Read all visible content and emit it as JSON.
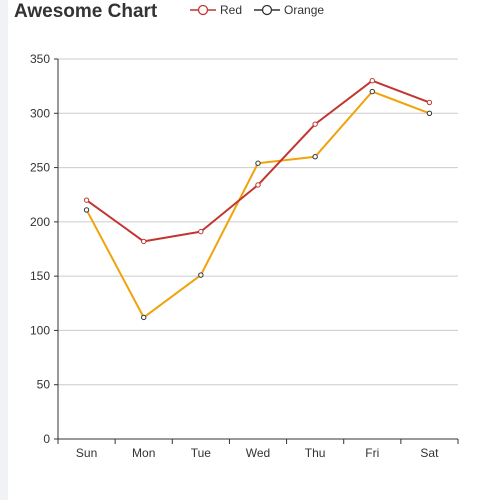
{
  "chart_data": {
    "type": "line",
    "title": "Awesome Chart",
    "categories": [
      "Sun",
      "Mon",
      "Tue",
      "Wed",
      "Thu",
      "Fri",
      "Sat"
    ],
    "ylim": [
      0,
      350
    ],
    "yticks": [
      0,
      50,
      100,
      150,
      200,
      250,
      300,
      350
    ],
    "grid": true,
    "legend_position": "top",
    "series": [
      {
        "name": "Red",
        "color": "#c23531",
        "values": [
          220,
          182,
          191,
          234,
          290,
          330,
          310
        ]
      },
      {
        "name": "Orange",
        "color": "#f0a30a",
        "values": [
          211,
          112,
          151,
          254,
          260,
          320,
          300
        ]
      }
    ]
  }
}
